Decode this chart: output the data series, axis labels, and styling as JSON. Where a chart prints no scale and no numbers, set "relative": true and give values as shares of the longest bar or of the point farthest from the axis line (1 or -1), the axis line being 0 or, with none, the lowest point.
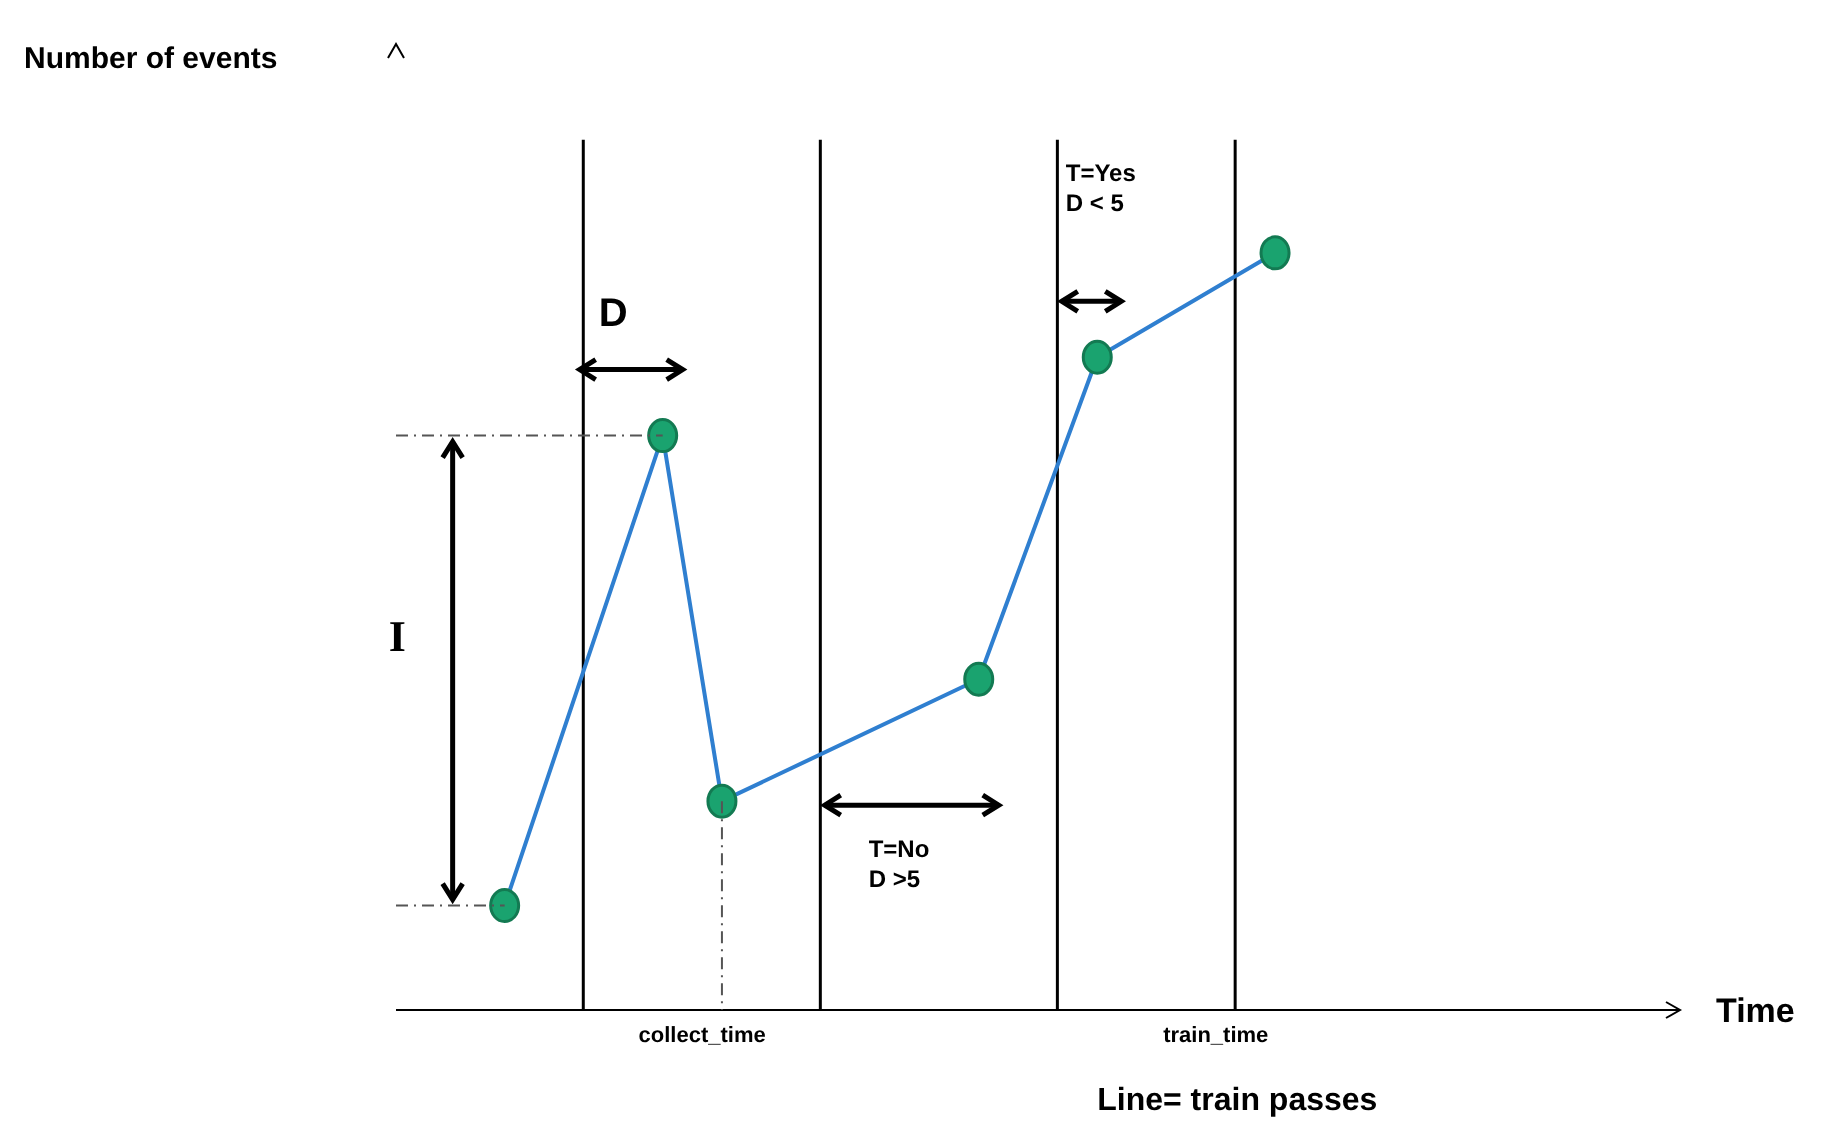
{
  "chart_data": {
    "type": "line",
    "relative": true,
    "ylabel": "Number of events",
    "xlabel": "Time",
    "categories": [
      null,
      null,
      null,
      null,
      null,
      null,
      null,
      null,
      null,
      null,
      null,
      null,
      null,
      null,
      null,
      "collect_time",
      null,
      null,
      null,
      null,
      null,
      null,
      null,
      null,
      null,
      null,
      null,
      null,
      null,
      null,
      null,
      null,
      null,
      null,
      null,
      null,
      null,
      null,
      null,
      null,
      null,
      "train_time",
      null,
      null,
      null,
      null,
      null,
      null,
      null,
      null,
      null,
      null,
      null,
      null,
      null,
      null,
      null,
      null,
      null,
      null,
      null,
      null,
      null,
      null,
      null
    ],
    "series": [
      {
        "color": "#2f7fd0",
        "values": [
          null,
          null,
          null,
          null,
          null,
          0.12,
          null,
          null,
          null,
          null,
          null,
          null,
          null,
          0.66,
          null,
          null,
          0.24,
          null,
          null,
          null,
          null,
          null,
          null,
          null,
          null,
          null,
          null,
          null,
          null,
          0.38,
          null,
          null,
          null,
          null,
          null,
          0.75,
          null,
          null,
          null,
          null,
          null,
          null,
          null,
          null,
          0.87,
          null,
          null,
          null,
          null,
          null,
          null,
          null,
          null,
          null,
          null,
          null,
          null,
          null,
          null,
          null,
          null,
          null,
          null,
          null,
          null
        ]
      },
      {
        "type": "bar",
        "color": "#000000",
        "values": [
          null,
          null,
          null,
          null,
          null,
          null,
          null,
          null,
          null,
          1,
          null,
          null,
          null,
          null,
          null,
          null,
          null,
          null,
          null,
          null,
          null,
          1,
          null,
          null,
          null,
          null,
          null,
          null,
          null,
          null,
          null,
          null,
          null,
          1,
          null,
          null,
          null,
          null,
          null,
          null,
          null,
          null,
          1,
          null,
          null,
          null,
          null,
          null,
          null,
          null,
          null,
          null,
          null,
          null,
          null,
          null,
          null,
          null,
          null,
          null,
          null,
          null,
          null,
          null,
          null
        ]
      }
    ],
    "marker": "circle",
    "line_style": "solid",
    "annotations": [
      "D",
      "I",
      "T=No\nD >5",
      "T=Yes\nD < 5",
      "Line= train passes"
    ]
  }
}
